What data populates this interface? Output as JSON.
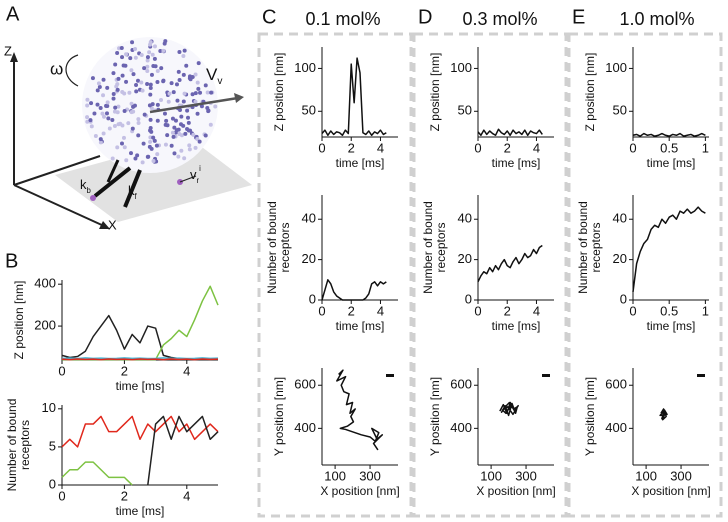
{
  "panels": [
    {
      "label": "A"
    },
    {
      "label": "B"
    },
    {
      "label": "C",
      "title": "0.1 mol%"
    },
    {
      "label": "D",
      "title": "0.3 mol%"
    },
    {
      "label": "E",
      "title": "1.0 mol%"
    }
  ],
  "diagram": {
    "z_axis": "Z",
    "x_axis": "X",
    "omega": "ω",
    "v_v": {
      "base": "V",
      "sub": "v"
    },
    "k_b": {
      "base": "k",
      "sub": "b"
    },
    "k_f": {
      "base": "k",
      "sub": "f"
    },
    "v_r": {
      "base": "v",
      "sub": "r",
      "sup": "i"
    }
  },
  "chart_data": [
    {
      "type": "line",
      "xlabel": "time [ms]",
      "ylabel": [
        "Z position [nm]"
      ],
      "xlim": [
        0,
        5
      ],
      "ylim": [
        38,
        420
      ],
      "xticks": [
        0,
        2,
        4
      ],
      "yticks": [
        200,
        400
      ],
      "x": [
        0,
        0.25,
        0.5,
        0.75,
        1,
        1.25,
        1.5,
        1.75,
        2,
        2.25,
        2.5,
        2.75,
        3,
        3.25,
        3.5,
        3.75,
        4,
        4.25,
        4.5,
        4.75,
        5
      ],
      "series": [
        {
          "color": "#222222",
          "values": [
            60,
            50,
            55,
            80,
            150,
            200,
            250,
            180,
            90,
            160,
            120,
            200,
            190,
            60,
            50,
            45,
            40,
            40,
            40,
            40,
            40
          ]
        },
        {
          "color": "#7dc242",
          "values": [
            40,
            40,
            40,
            40,
            40,
            40,
            40,
            40,
            40,
            40,
            40,
            40,
            40,
            110,
            140,
            180,
            150,
            230,
            320,
            390,
            300
          ]
        },
        {
          "color": "#49b6d6",
          "values": [
            46,
            47,
            45,
            48,
            46,
            47,
            45,
            46,
            48,
            46,
            47,
            45,
            46,
            48,
            46,
            47,
            45,
            46,
            48,
            46,
            47
          ]
        },
        {
          "color": "#e0281c",
          "values": [
            42,
            40,
            43,
            41,
            42,
            40,
            43,
            41,
            42,
            40,
            43,
            41,
            42,
            40,
            43,
            41,
            42,
            40,
            43,
            41,
            42
          ]
        }
      ]
    },
    {
      "type": "line",
      "xlabel": "time [ms]",
      "ylabel": [
        "Number of bound",
        "receptors"
      ],
      "xlim": [
        0,
        5
      ],
      "ylim": [
        0,
        10.5
      ],
      "xticks": [
        0,
        2,
        4
      ],
      "yticks": [
        0,
        5,
        10
      ],
      "x": [
        0,
        0.25,
        0.5,
        0.75,
        1,
        1.25,
        1.5,
        1.75,
        2,
        2.25,
        2.5,
        2.75,
        3,
        3.25,
        3.5,
        3.75,
        4,
        4.25,
        4.5,
        4.75,
        5
      ],
      "series": [
        {
          "color": "#e0281c",
          "values": [
            5,
            6,
            5,
            8,
            8,
            9,
            7,
            7,
            8,
            9,
            6,
            8,
            7,
            8,
            9,
            7,
            8,
            6,
            7,
            8,
            7
          ]
        },
        {
          "color": "#7dc242",
          "values": [
            1,
            2,
            2,
            3,
            3,
            2,
            1,
            1,
            1,
            0,
            null,
            null,
            null,
            null,
            null,
            null,
            null,
            null,
            null,
            null,
            null
          ]
        },
        {
          "color": "#222222",
          "values": [
            null,
            null,
            null,
            null,
            null,
            null,
            null,
            null,
            null,
            null,
            null,
            0,
            8,
            9,
            6,
            9,
            7,
            8,
            9,
            6,
            7
          ]
        }
      ]
    },
    {
      "type": "line",
      "xlabel": "time [ms]",
      "ylabel": [
        "Z position [nm]"
      ],
      "xlim": [
        0,
        5.2
      ],
      "ylim": [
        20,
        125
      ],
      "xticks": [
        0,
        2,
        4
      ],
      "yticks": [
        50,
        100
      ],
      "x": [
        0,
        0.2,
        0.4,
        0.6,
        0.8,
        1,
        1.2,
        1.4,
        1.6,
        1.8,
        2,
        2.2,
        2.4,
        2.6,
        2.8,
        3,
        3.2,
        3.4,
        3.6,
        3.8,
        4,
        4.2,
        4.4
      ],
      "series": [
        {
          "color": "#111111",
          "values": [
            24,
            28,
            22,
            27,
            23,
            26,
            25,
            22,
            28,
            24,
            105,
            60,
            112,
            95,
            25,
            23,
            27,
            22,
            26,
            24,
            28,
            23,
            25
          ]
        }
      ]
    },
    {
      "type": "line",
      "xlabel": "time [ms]",
      "ylabel": [
        "Number of bound",
        "receptors"
      ],
      "xlim": [
        0,
        5.2
      ],
      "ylim": [
        0,
        52
      ],
      "xticks": [
        0,
        2,
        4
      ],
      "yticks": [
        0,
        20,
        40
      ],
      "x": [
        0,
        0.2,
        0.4,
        0.6,
        0.8,
        1,
        1.2,
        1.4,
        1.6,
        1.8,
        2,
        2.2,
        2.4,
        2.6,
        2.8,
        3,
        3.2,
        3.4,
        3.6,
        3.8,
        4,
        4.2,
        4.4
      ],
      "series": [
        {
          "color": "#111111",
          "values": [
            0,
            5,
            10,
            8,
            4,
            2,
            1,
            0,
            0,
            0,
            0,
            0,
            0,
            0,
            0,
            1,
            3,
            8,
            9,
            7,
            9,
            8,
            9
          ]
        }
      ]
    },
    {
      "type": "line",
      "xlabel": "X position [nm]",
      "ylabel": [
        "Y position [nm]"
      ],
      "xlim": [
        25,
        460
      ],
      "ylim": [
        230,
        680
      ],
      "xticks": [
        100,
        300
      ],
      "yticks": [
        400,
        600
      ],
      "x": [
        120,
        145,
        110,
        160,
        135,
        150,
        180,
        165,
        200,
        185,
        215,
        190,
        205,
        170,
        130,
        160,
        250,
        300,
        330,
        350,
        310,
        340,
        370,
        320,
        345
      ],
      "series": [
        {
          "color": "#111111",
          "values": [
            650,
            670,
            620,
            640,
            600,
            570,
            560,
            510,
            520,
            470,
            490,
            455,
            430,
            410,
            400,
            395,
            370,
            360,
            340,
            380,
            400,
            350,
            370,
            330,
            300
          ]
        }
      ]
    },
    {
      "type": "line",
      "xlabel": "time [ms]",
      "ylabel": [
        "Z position [nm]"
      ],
      "xlim": [
        0,
        5.2
      ],
      "ylim": [
        20,
        125
      ],
      "xticks": [
        0,
        2,
        4
      ],
      "yticks": [
        50,
        100
      ],
      "x": [
        0,
        0.2,
        0.4,
        0.6,
        0.8,
        1,
        1.2,
        1.4,
        1.6,
        1.8,
        2,
        2.2,
        2.4,
        2.6,
        2.8,
        3,
        3.2,
        3.4,
        3.6,
        3.8,
        4,
        4.2,
        4.4
      ],
      "series": [
        {
          "color": "#111111",
          "values": [
            26,
            22,
            28,
            23,
            27,
            24,
            22,
            29,
            25,
            23,
            27,
            22,
            28,
            24,
            26,
            23,
            28,
            22,
            27,
            25,
            24,
            28,
            23
          ]
        }
      ]
    },
    {
      "type": "line",
      "xlabel": "time [ms]",
      "ylabel": [
        "Number of bound",
        "receptors"
      ],
      "xlim": [
        0,
        5.2
      ],
      "ylim": [
        0,
        52
      ],
      "xticks": [
        0,
        2,
        4
      ],
      "yticks": [
        0,
        20,
        40
      ],
      "x": [
        0,
        0.2,
        0.4,
        0.6,
        0.8,
        1,
        1.2,
        1.4,
        1.6,
        1.8,
        2,
        2.2,
        2.4,
        2.6,
        2.8,
        3,
        3.2,
        3.4,
        3.6,
        3.8,
        4,
        4.2,
        4.4
      ],
      "series": [
        {
          "color": "#111111",
          "values": [
            9,
            12,
            14,
            13,
            16,
            14,
            17,
            15,
            18,
            20,
            17,
            16,
            19,
            21,
            18,
            20,
            23,
            21,
            22,
            25,
            23,
            26,
            27
          ]
        }
      ]
    },
    {
      "type": "line",
      "xlabel": "X position [nm]",
      "ylabel": [
        "Y position [nm]"
      ],
      "xlim": [
        25,
        460
      ],
      "ylim": [
        230,
        680
      ],
      "xticks": [
        100,
        300
      ],
      "yticks": [
        400,
        600
      ],
      "x": [
        150,
        170,
        190,
        210,
        230,
        250,
        240,
        220,
        200,
        180,
        160,
        175,
        205,
        235,
        255,
        225,
        195,
        165,
        185,
        215
      ],
      "series": [
        {
          "color": "#111111",
          "values": [
            480,
            510,
            470,
            520,
            490,
            500,
            470,
            515,
            460,
            505,
            475,
            495,
            520,
            480,
            505,
            465,
            500,
            485,
            470,
            510
          ]
        }
      ]
    },
    {
      "type": "line",
      "xlabel": "time [ms]",
      "ylabel": [
        "Z position [nm]"
      ],
      "xlim": [
        0,
        1.05
      ],
      "ylim": [
        20,
        125
      ],
      "xticks": [
        0,
        0.5,
        1
      ],
      "yticks": [
        50,
        100
      ],
      "x": [
        0,
        0.05,
        0.1,
        0.15,
        0.2,
        0.25,
        0.3,
        0.35,
        0.4,
        0.45,
        0.5,
        0.55,
        0.6,
        0.65,
        0.7,
        0.75,
        0.8,
        0.85,
        0.9,
        0.95,
        1
      ],
      "series": [
        {
          "color": "#111111",
          "values": [
            22,
            23,
            21,
            24,
            22,
            23,
            21,
            22,
            24,
            22,
            21,
            23,
            22,
            24,
            21,
            22,
            23,
            21,
            22,
            24,
            22
          ]
        }
      ]
    },
    {
      "type": "line",
      "xlabel": "time [ms]",
      "ylabel": [
        "Number of bound",
        "receptors"
      ],
      "xlim": [
        0,
        1.05
      ],
      "ylim": [
        0,
        52
      ],
      "xticks": [
        0,
        0.5,
        1
      ],
      "yticks": [
        0,
        20,
        40
      ],
      "x": [
        0,
        0.05,
        0.1,
        0.15,
        0.2,
        0.25,
        0.3,
        0.35,
        0.4,
        0.45,
        0.5,
        0.55,
        0.6,
        0.65,
        0.7,
        0.75,
        0.8,
        0.85,
        0.9,
        0.95,
        1
      ],
      "series": [
        {
          "color": "#111111",
          "values": [
            4,
            18,
            24,
            28,
            30,
            35,
            37,
            36,
            40,
            38,
            41,
            42,
            40,
            44,
            43,
            45,
            43,
            44,
            46,
            44,
            43
          ]
        }
      ]
    },
    {
      "type": "line",
      "xlabel": "X position [nm]",
      "ylabel": [
        "Y position [nm]"
      ],
      "xlim": [
        25,
        460
      ],
      "ylim": [
        230,
        680
      ],
      "xticks": [
        100,
        300
      ],
      "yticks": [
        400,
        600
      ],
      "x": [
        185,
        200,
        215,
        195,
        210,
        190,
        205,
        220,
        180,
        200
      ],
      "series": [
        {
          "color": "#111111",
          "values": [
            470,
            490,
            455,
            440,
            475,
            445,
            485,
            465,
            460,
            480
          ]
        }
      ]
    }
  ]
}
